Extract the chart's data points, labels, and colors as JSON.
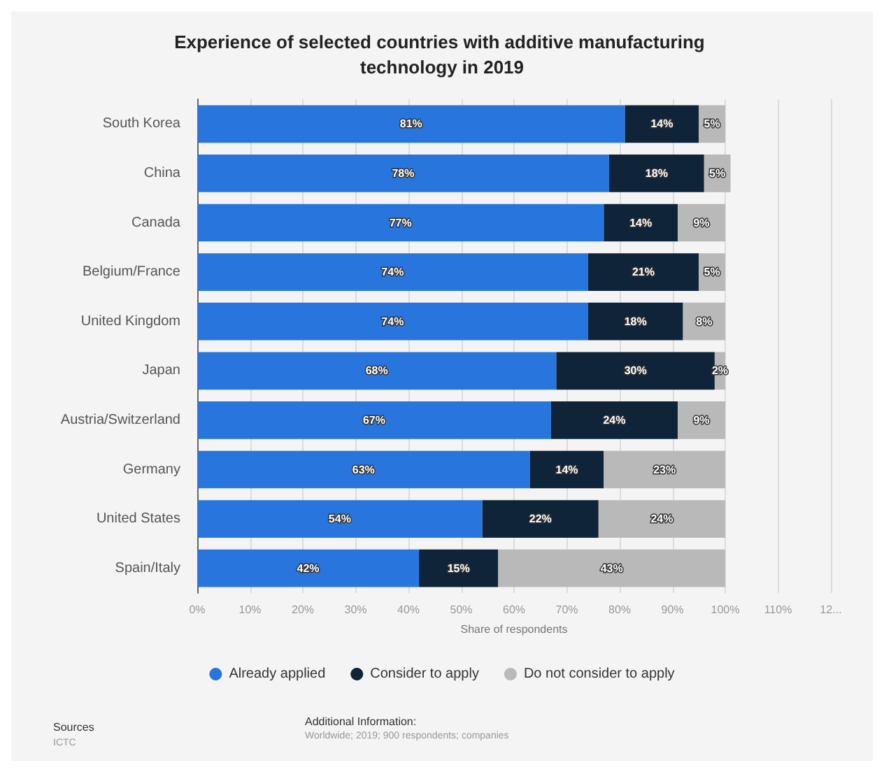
{
  "chart_data": {
    "type": "bar",
    "orientation": "horizontal",
    "stacked": true,
    "title": "Experience of selected countries with additive manufacturing technology in 2019",
    "xlabel": "Share of respondents",
    "categories": [
      "South Korea",
      "China",
      "Canada",
      "Belgium/France",
      "United Kingdom",
      "Japan",
      "Austria/Switzerland",
      "Germany",
      "United States",
      "Spain/Italy"
    ],
    "series": [
      {
        "name": "Already applied",
        "color": "#2876dd",
        "values": [
          81,
          78,
          77,
          74,
          74,
          68,
          67,
          63,
          54,
          42
        ],
        "value_labels": [
          "81%",
          "78%",
          "77%",
          "74%",
          "74%",
          "68%",
          "67%",
          "63%",
          "54%",
          "42%"
        ]
      },
      {
        "name": "Consider to apply",
        "color": "#0f2339",
        "values": [
          14,
          18,
          14,
          21,
          18,
          30,
          24,
          14,
          22,
          15
        ],
        "value_labels": [
          "14%",
          "18%",
          "14%",
          "21%",
          "18%",
          "30%",
          "24%",
          "14%",
          "22%",
          "15%"
        ]
      },
      {
        "name": "Do not consider to apply",
        "color": "#b9b9b9",
        "values": [
          5,
          5,
          9,
          5,
          8,
          2,
          9,
          23,
          24,
          43
        ],
        "value_labels": [
          "5%",
          "5%",
          "9%",
          "5%",
          "8%",
          "2%",
          "9%",
          "23%",
          "24%",
          "43%"
        ]
      }
    ],
    "xlim": [
      0,
      120
    ],
    "xticks": [
      {
        "value": 0,
        "label": "0%"
      },
      {
        "value": 10,
        "label": "10%"
      },
      {
        "value": 20,
        "label": "20%"
      },
      {
        "value": 30,
        "label": "30%"
      },
      {
        "value": 40,
        "label": "40%"
      },
      {
        "value": 50,
        "label": "50%"
      },
      {
        "value": 60,
        "label": "60%"
      },
      {
        "value": 70,
        "label": "70%"
      },
      {
        "value": 80,
        "label": "80%"
      },
      {
        "value": 90,
        "label": "90%"
      },
      {
        "value": 100,
        "label": "100%"
      },
      {
        "value": 110,
        "label": "110%"
      },
      {
        "value": 120,
        "label": "12..."
      }
    ],
    "grid": "x",
    "legend": "bottom",
    "marker": "circle",
    "annotations": [
      "Sources",
      "ICTC",
      "Additional Information:",
      "Worldwide; 2019; 900 respondents; companies"
    ]
  }
}
